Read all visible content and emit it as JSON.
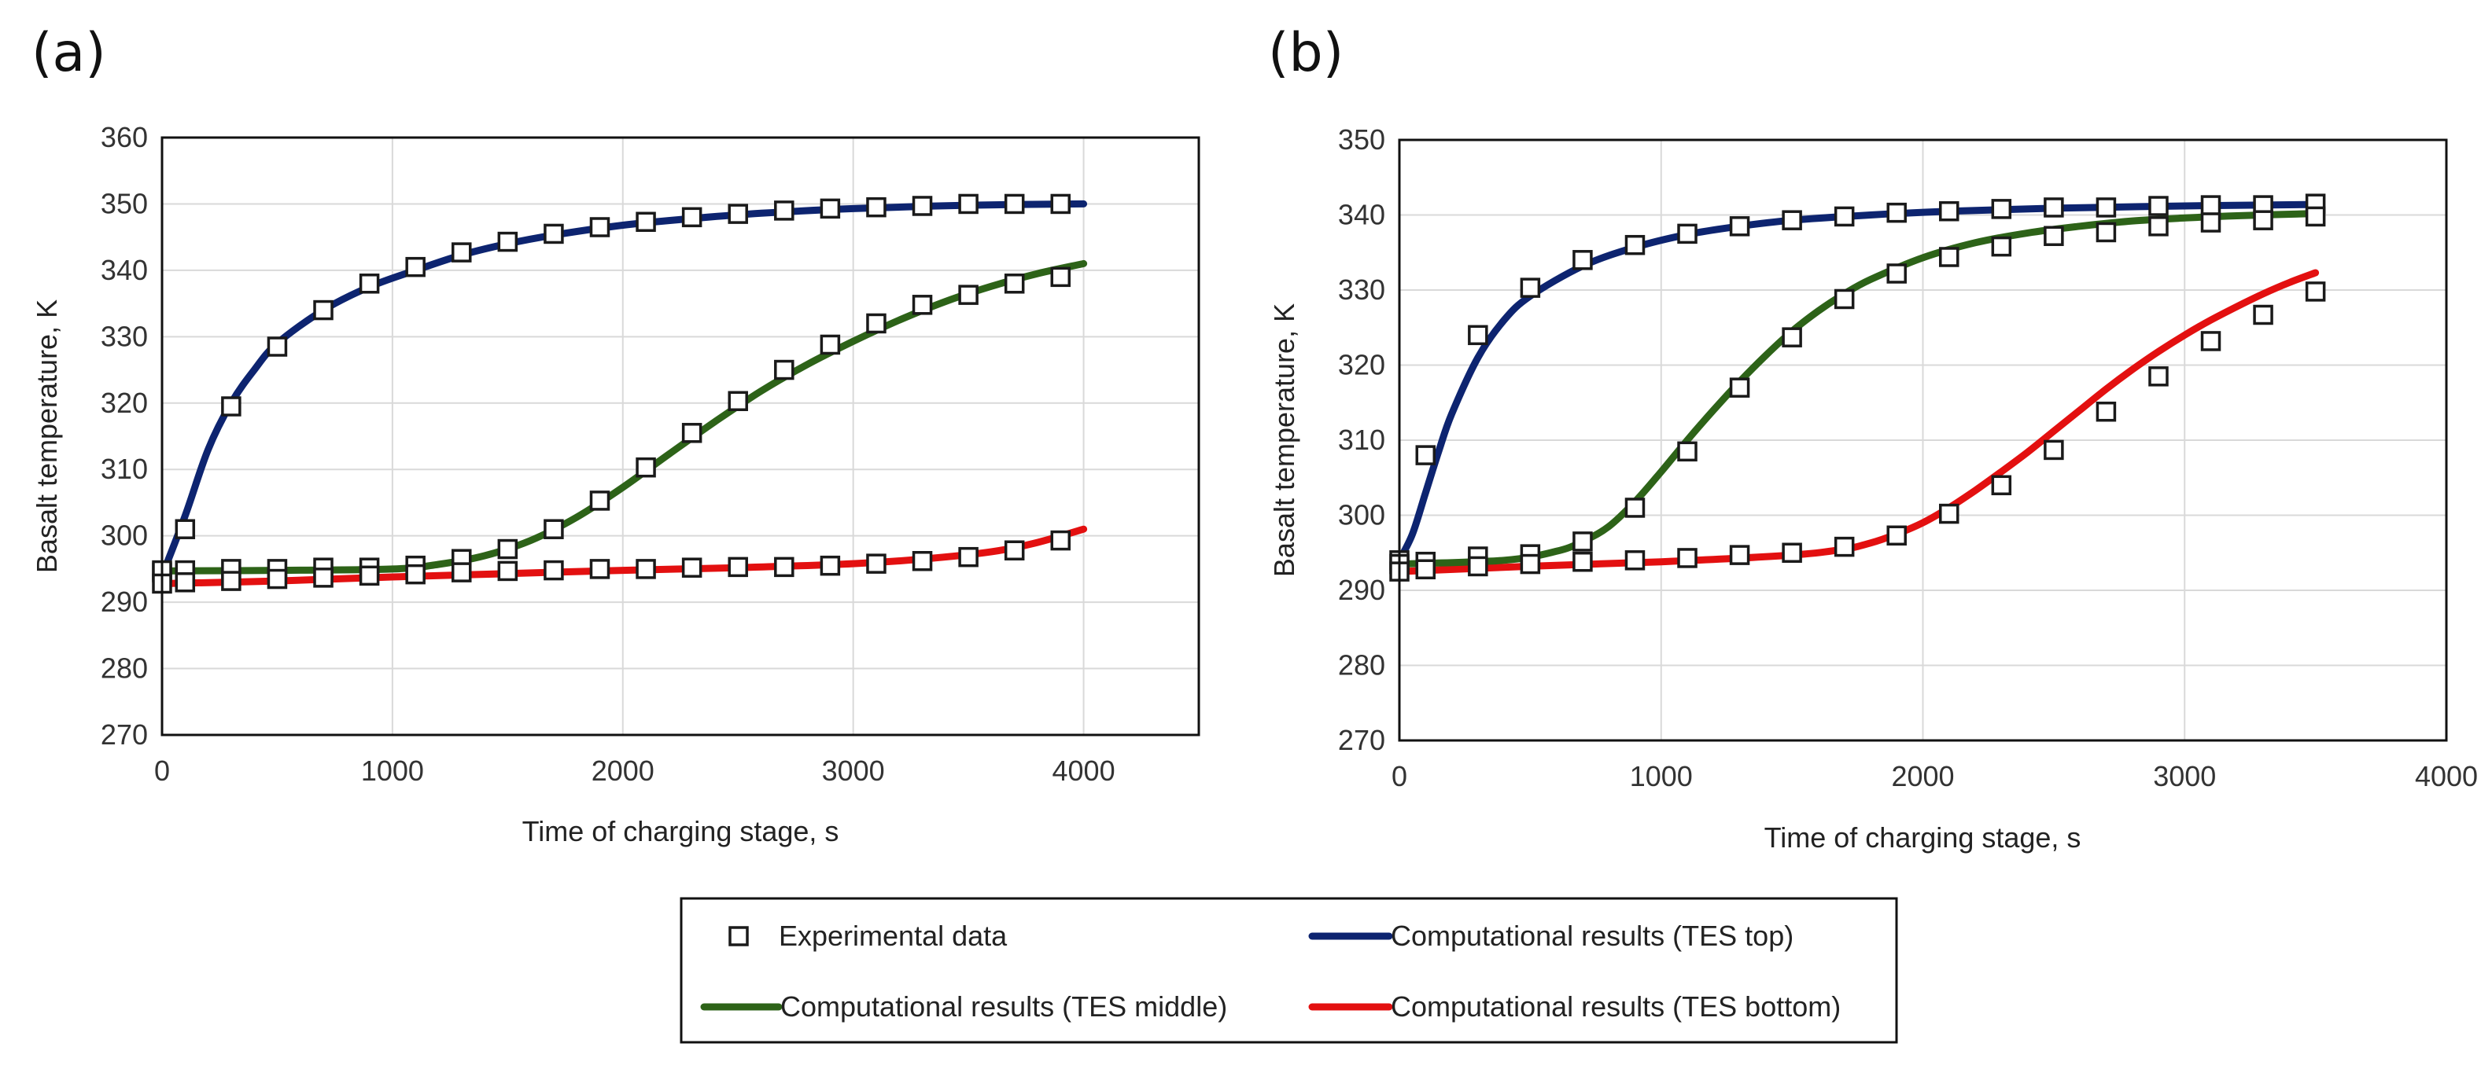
{
  "colors": {
    "experimental": "#1a1a1a",
    "top": "#0d2470",
    "middle": "#2d6318",
    "bottom": "#e31010",
    "grid": "#d9d9d9",
    "frame": "#111111"
  },
  "legend": {
    "experimental": "Experimental data",
    "top": "Computational results (TES top)",
    "middle": "Computational results (TES middle)",
    "bottom": "Computational results (TES bottom)"
  },
  "chart_data": [
    {
      "type": "line",
      "panel_label": "(a)",
      "xlabel": "Time of charging stage, s",
      "ylabel": "Basalt temperature, K",
      "xlim": [
        0,
        4500
      ],
      "ylim": [
        270,
        360
      ],
      "xticks": [
        0,
        1000,
        2000,
        3000,
        4000
      ],
      "yticks": [
        270,
        280,
        290,
        300,
        310,
        320,
        330,
        340,
        350,
        360
      ],
      "series": [
        {
          "name": "Computational results (TES top)",
          "key": "top",
          "x": [
            0,
            100,
            200,
            300,
            400,
            500,
            700,
            900,
            1100,
            1300,
            1500,
            1700,
            2000,
            2300,
            2600,
            3000,
            3500,
            4000
          ],
          "y": [
            294,
            303,
            313,
            320,
            325,
            329,
            334,
            337.5,
            340,
            342.3,
            344,
            345.3,
            346.8,
            347.8,
            348.6,
            349.3,
            349.8,
            350
          ]
        },
        {
          "name": "Computational results (TES middle)",
          "key": "middle",
          "x": [
            0,
            500,
            1000,
            1200,
            1400,
            1600,
            1800,
            2000,
            2200,
            2400,
            2600,
            2800,
            3000,
            3200,
            3400,
            3600,
            3800,
            4000
          ],
          "y": [
            294.7,
            294.8,
            295,
            295.7,
            297,
            299.3,
            302.8,
            307.3,
            312.3,
            317.2,
            321.8,
            325.8,
            329.3,
            332.5,
            335.3,
            337.6,
            339.5,
            341
          ]
        },
        {
          "name": "Computational results (TES bottom)",
          "key": "bottom",
          "x": [
            0,
            500,
            1000,
            1500,
            2000,
            2500,
            3000,
            3300,
            3600,
            3800,
            4000
          ],
          "y": [
            292.8,
            293.2,
            293.8,
            294.3,
            294.8,
            295.2,
            295.8,
            296.5,
            297.6,
            299,
            301
          ]
        },
        {
          "name": "Experimental data (TES top)",
          "key": "experimental",
          "x": [
            0,
            100,
            300,
            500,
            700,
            900,
            1100,
            1300,
            1500,
            1700,
            1900,
            2100,
            2300,
            2500,
            2700,
            2900,
            3100,
            3300,
            3500,
            3700,
            3900
          ],
          "y": [
            294.5,
            301,
            319.5,
            328.5,
            334,
            338,
            340.5,
            342.7,
            344.3,
            345.5,
            346.5,
            347.3,
            348,
            348.5,
            349,
            349.3,
            349.5,
            349.7,
            350,
            350,
            350
          ]
        },
        {
          "name": "Experimental data (TES middle)",
          "key": "experimental",
          "x": [
            0,
            100,
            300,
            500,
            700,
            900,
            1100,
            1300,
            1500,
            1700,
            1900,
            2100,
            2300,
            2500,
            2700,
            2900,
            3100,
            3300,
            3500,
            3700,
            3900
          ],
          "y": [
            294.8,
            294.8,
            295,
            295,
            295.2,
            295.2,
            295.5,
            296.5,
            298,
            301,
            305.3,
            310.3,
            315.5,
            320.3,
            325,
            328.8,
            332,
            334.8,
            336.3,
            338,
            339
          ]
        },
        {
          "name": "Experimental data (TES bottom)",
          "key": "experimental",
          "x": [
            0,
            100,
            300,
            500,
            700,
            900,
            1100,
            1300,
            1500,
            1700,
            1900,
            2100,
            2300,
            2500,
            2700,
            2900,
            3100,
            3300,
            3500,
            3700,
            3900
          ],
          "y": [
            292.8,
            293,
            293.2,
            293.5,
            293.7,
            294,
            294.2,
            294.5,
            294.7,
            294.8,
            295,
            295,
            295.2,
            295.3,
            295.3,
            295.5,
            295.8,
            296.2,
            296.8,
            297.8,
            299.3
          ]
        }
      ]
    },
    {
      "type": "line",
      "panel_label": "(b)",
      "xlabel": "Time of charging stage, s",
      "ylabel": "Basalt temperature, K",
      "xlim": [
        0,
        4000
      ],
      "ylim": [
        270,
        350
      ],
      "xticks": [
        0,
        1000,
        2000,
        3000,
        4000
      ],
      "yticks": [
        270,
        280,
        290,
        300,
        310,
        320,
        330,
        340,
        350
      ],
      "series": [
        {
          "name": "Computational results (TES top)",
          "key": "top",
          "x": [
            0,
            50,
            100,
            150,
            200,
            300,
            400,
            500,
            700,
            900,
            1100,
            1300,
            1500,
            1800,
            2100,
            2500,
            3000,
            3500
          ],
          "y": [
            294,
            297.5,
            303,
            308.5,
            313.5,
            321,
            326,
            329.2,
            333.2,
            335.7,
            337.4,
            338.5,
            339.3,
            340,
            340.5,
            340.9,
            341.2,
            341.4
          ]
        },
        {
          "name": "Computational results (TES middle)",
          "key": "middle",
          "x": [
            0,
            400,
            600,
            700,
            800,
            900,
            1000,
            1100,
            1200,
            1300,
            1400,
            1500,
            1600,
            1700,
            1800,
            2000,
            2200,
            2400,
            2600,
            2800,
            3000,
            3200,
            3500
          ],
          "y": [
            293.5,
            294,
            295.2,
            296.5,
            298.5,
            301.8,
            305.8,
            310,
            314,
            317.8,
            321.3,
            324.5,
            327.2,
            329.5,
            331.4,
            334.3,
            336.3,
            337.6,
            338.5,
            339.2,
            339.6,
            339.9,
            340.2
          ]
        },
        {
          "name": "Computational results (TES bottom)",
          "key": "bottom",
          "x": [
            0,
            500,
            1000,
            1500,
            1700,
            1800,
            1900,
            2000,
            2100,
            2200,
            2300,
            2400,
            2500,
            2600,
            2700,
            2800,
            2900,
            3000,
            3100,
            3200,
            3300,
            3400,
            3500
          ],
          "y": [
            292.5,
            293.2,
            293.8,
            294.7,
            295.5,
            296.3,
            297.5,
            299,
            301,
            303.3,
            305.8,
            308.4,
            311.2,
            314,
            316.8,
            319.4,
            321.8,
            324,
            326,
            327.8,
            329.5,
            331,
            332.3
          ]
        },
        {
          "name": "Experimental data (TES top)",
          "key": "experimental",
          "x": [
            0,
            100,
            300,
            500,
            700,
            900,
            1100,
            1300,
            1500,
            1700,
            1900,
            2100,
            2300,
            2500,
            2700,
            2900,
            3100,
            3300,
            3500
          ],
          "y": [
            294,
            308,
            324,
            330.3,
            334,
            336,
            337.5,
            338.5,
            339.3,
            339.8,
            340.3,
            340.5,
            340.8,
            341,
            341,
            341.2,
            341.3,
            341.3,
            341.5
          ]
        },
        {
          "name": "Experimental data (TES middle)",
          "key": "experimental",
          "x": [
            0,
            100,
            300,
            500,
            700,
            900,
            1100,
            1300,
            1500,
            1700,
            1900,
            2100,
            2300,
            2500,
            2700,
            2900,
            3100,
            3300,
            3500
          ],
          "y": [
            293.5,
            293.8,
            294.5,
            294.8,
            296.5,
            301,
            308.5,
            317,
            323.7,
            328.8,
            332.2,
            334.4,
            335.8,
            337.2,
            337.7,
            338.5,
            339,
            339.3,
            339.8
          ]
        },
        {
          "name": "Experimental data (TES bottom)",
          "key": "experimental",
          "x": [
            0,
            100,
            300,
            500,
            700,
            900,
            1100,
            1300,
            1500,
            1700,
            1900,
            2100,
            2300,
            2500,
            2700,
            2900,
            3100,
            3300,
            3500
          ],
          "y": [
            292.5,
            292.8,
            293.2,
            293.5,
            293.8,
            294,
            294.3,
            294.7,
            295,
            295.8,
            297.3,
            300.2,
            304,
            308.7,
            313.8,
            318.5,
            323.2,
            326.7,
            329.8
          ]
        }
      ]
    }
  ]
}
